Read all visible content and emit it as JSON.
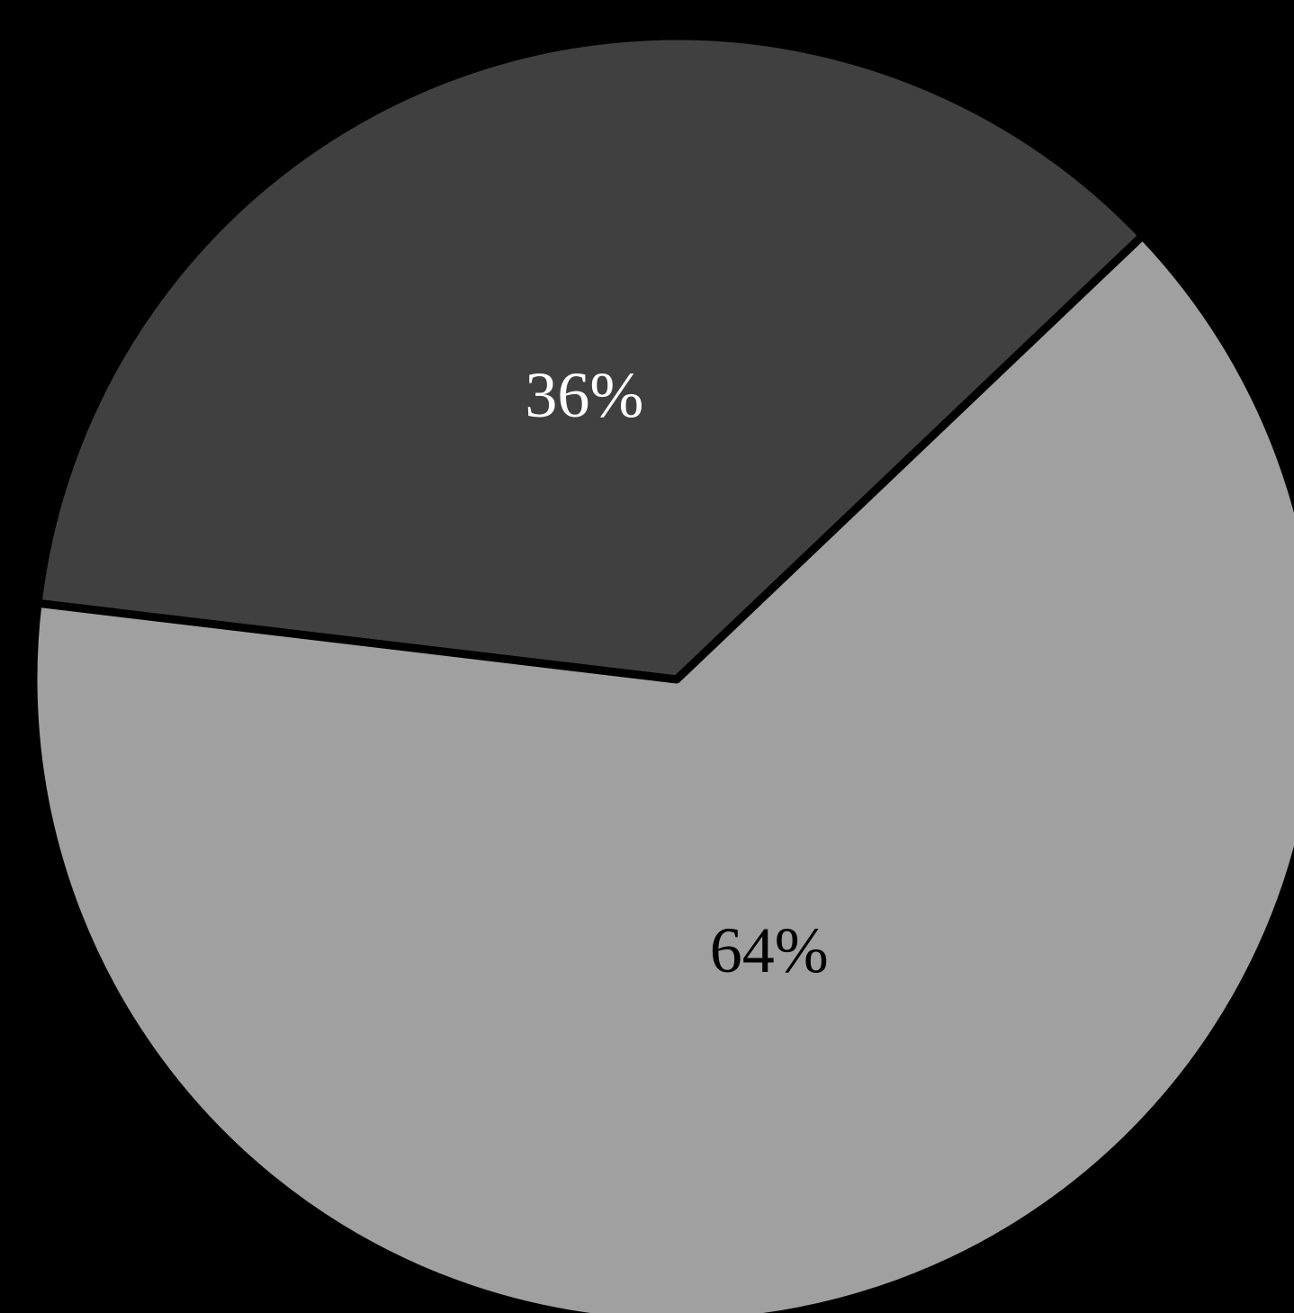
{
  "chart_data": {
    "type": "pie",
    "title": "",
    "slices": [
      {
        "value": 36,
        "label": "36%",
        "color": "#404040",
        "label_color": "#ffffff"
      },
      {
        "value": 64,
        "label": "64%",
        "color": "#a0a0a0",
        "label_color": "#000000"
      }
    ],
    "background": "#000000",
    "separator_color": "#000000",
    "legend": "none"
  }
}
